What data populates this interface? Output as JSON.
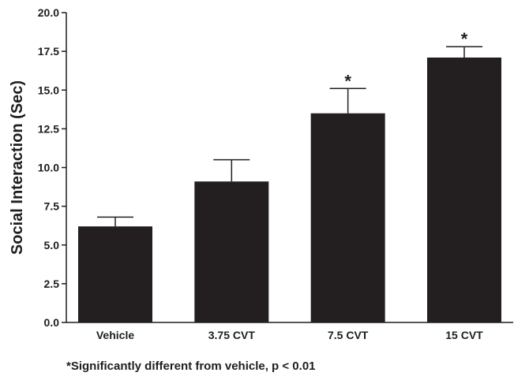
{
  "chart_data": {
    "type": "bar",
    "title": "",
    "xlabel": "",
    "ylabel": "Social Interaction (Sec)",
    "ylim": [
      0,
      20
    ],
    "yticks": [
      0.0,
      2.5,
      5.0,
      7.5,
      10.0,
      12.5,
      15.0,
      17.5,
      20.0
    ],
    "ytick_labels": [
      "0.0",
      "2.5",
      "5.0",
      "7.5",
      "10.0",
      "12.5",
      "15.0",
      "17.5",
      "20.0"
    ],
    "categories": [
      "Vehicle",
      "3.75 CVT",
      "7.5 CVT",
      "15 CVT"
    ],
    "values": [
      6.2,
      9.1,
      13.5,
      17.1
    ],
    "error_upper": [
      0.6,
      1.4,
      1.6,
      0.7
    ],
    "significance_markers": [
      "",
      "",
      "*",
      "*"
    ],
    "bar_color": "#231f20",
    "grid": false,
    "legend": "none"
  },
  "footnote": "*Significantly different from vehicle, p < 0.01"
}
